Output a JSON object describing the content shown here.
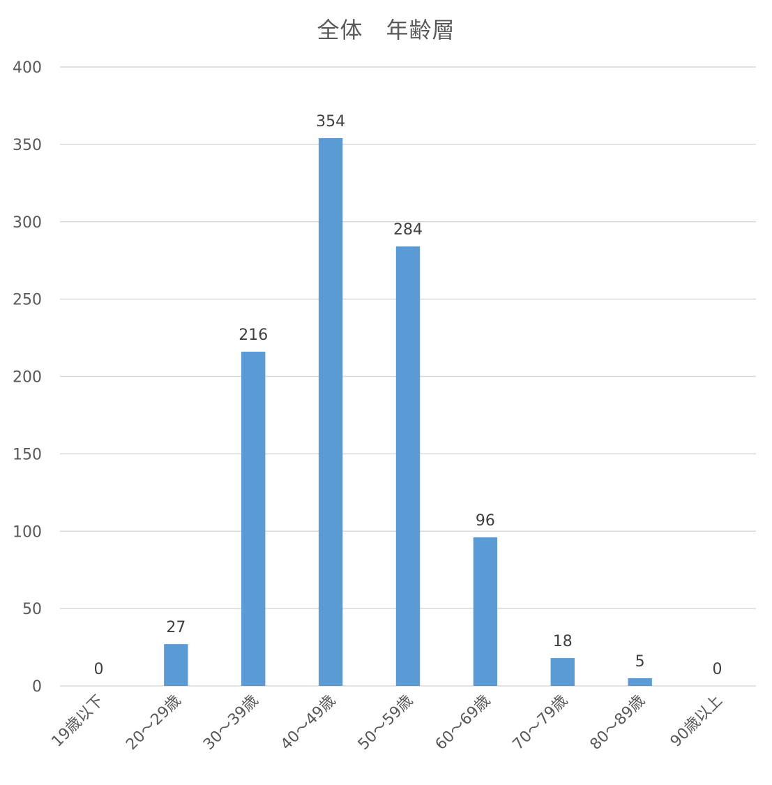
{
  "chart_data": {
    "type": "bar",
    "title": "全体　年齢層",
    "categories": [
      "19歳以下",
      "20～29歳",
      "30～39歳",
      "40～49歳",
      "50～59歳",
      "60～69歳",
      "70～79歳",
      "80～89歳",
      "90歳以上"
    ],
    "values": [
      0,
      27,
      216,
      354,
      284,
      96,
      18,
      5,
      0
    ],
    "ylim": [
      0,
      400
    ],
    "yticks": [
      0,
      50,
      100,
      150,
      200,
      250,
      300,
      350,
      400
    ],
    "xlabel": "",
    "ylabel": "",
    "grid": true,
    "legend": "none",
    "bar_color": "#5b9bd5",
    "data_labels": true
  }
}
